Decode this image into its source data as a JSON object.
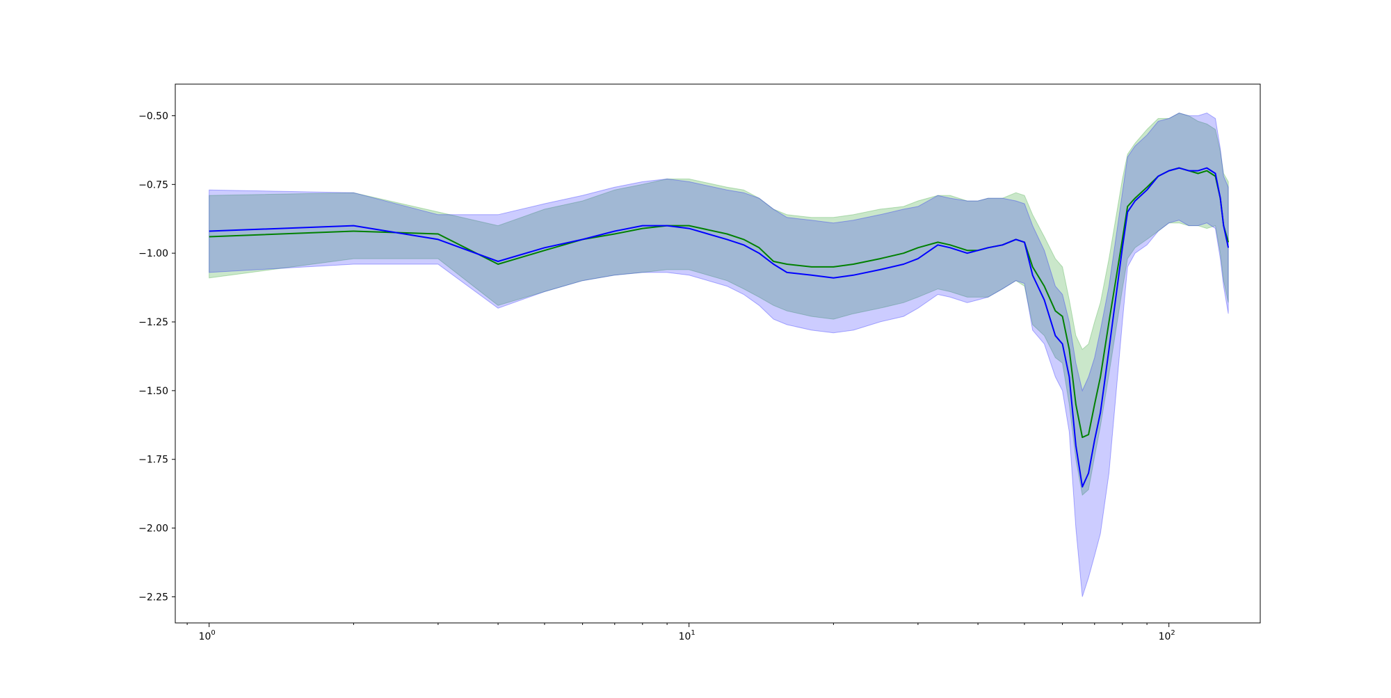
{
  "chart_data": {
    "type": "line",
    "title": "",
    "xlabel": "",
    "ylabel": "",
    "xscale": "log",
    "xlim": [
      0.85,
      155
    ],
    "ylim": [
      -2.345,
      -0.385
    ],
    "grid": false,
    "legend": "none",
    "x_ticks": [
      {
        "value": 1,
        "base": "10",
        "exp": "0"
      },
      {
        "value": 10,
        "base": "10",
        "exp": "1"
      },
      {
        "value": 100,
        "base": "10",
        "exp": "2"
      }
    ],
    "y_ticks": [
      {
        "value": -0.5,
        "label": "−0.50"
      },
      {
        "value": -0.75,
        "label": "−0.75"
      },
      {
        "value": -1.0,
        "label": "−1.00"
      },
      {
        "value": -1.25,
        "label": "−1.25"
      },
      {
        "value": -1.5,
        "label": "−1.50"
      },
      {
        "value": -1.75,
        "label": "−1.75"
      },
      {
        "value": -2.0,
        "label": "−2.00"
      },
      {
        "value": -2.25,
        "label": "−2.25"
      }
    ],
    "series": [
      {
        "color": "#008000",
        "band_color": "#2ca02c",
        "band_opacity": 0.25,
        "points": [
          [
            1,
            -0.94,
            -1.09,
            -0.79
          ],
          [
            2,
            -0.92,
            -1.02,
            -0.78
          ],
          [
            3,
            -0.93,
            -1.02,
            -0.85
          ],
          [
            4,
            -1.04,
            -1.19,
            -0.9
          ],
          [
            5,
            -0.99,
            -1.14,
            -0.84
          ],
          [
            6,
            -0.95,
            -1.1,
            -0.81
          ],
          [
            7,
            -0.93,
            -1.08,
            -0.77
          ],
          [
            8,
            -0.91,
            -1.07,
            -0.75
          ],
          [
            9,
            -0.9,
            -1.06,
            -0.73
          ],
          [
            10,
            -0.9,
            -1.06,
            -0.73
          ],
          [
            12,
            -0.93,
            -1.1,
            -0.76
          ],
          [
            13,
            -0.95,
            -1.13,
            -0.77
          ],
          [
            14,
            -0.98,
            -1.16,
            -0.8
          ],
          [
            15,
            -1.03,
            -1.19,
            -0.84
          ],
          [
            16,
            -1.04,
            -1.21,
            -0.86
          ],
          [
            18,
            -1.05,
            -1.23,
            -0.87
          ],
          [
            20,
            -1.05,
            -1.24,
            -0.87
          ],
          [
            22,
            -1.04,
            -1.22,
            -0.86
          ],
          [
            25,
            -1.02,
            -1.2,
            -0.84
          ],
          [
            28,
            -1.0,
            -1.18,
            -0.83
          ],
          [
            30,
            -0.98,
            -1.16,
            -0.81
          ],
          [
            33,
            -0.96,
            -1.13,
            -0.79
          ],
          [
            35,
            -0.97,
            -1.14,
            -0.79
          ],
          [
            38,
            -0.99,
            -1.16,
            -0.81
          ],
          [
            40,
            -0.99,
            -1.16,
            -0.81
          ],
          [
            42,
            -0.98,
            -1.16,
            -0.8
          ],
          [
            45,
            -0.97,
            -1.13,
            -0.8
          ],
          [
            48,
            -0.95,
            -1.1,
            -0.78
          ],
          [
            50,
            -0.96,
            -1.12,
            -0.79
          ],
          [
            52,
            -1.05,
            -1.26,
            -0.86
          ],
          [
            55,
            -1.12,
            -1.3,
            -0.94
          ],
          [
            58,
            -1.21,
            -1.38,
            -1.02
          ],
          [
            60,
            -1.23,
            -1.4,
            -1.05
          ],
          [
            62,
            -1.35,
            -1.55,
            -1.17
          ],
          [
            64,
            -1.55,
            -1.75,
            -1.3
          ],
          [
            66,
            -1.67,
            -1.88,
            -1.35
          ],
          [
            68,
            -1.66,
            -1.86,
            -1.33
          ],
          [
            70,
            -1.55,
            -1.74,
            -1.25
          ],
          [
            72,
            -1.45,
            -1.63,
            -1.18
          ],
          [
            75,
            -1.25,
            -1.44,
            -1.02
          ],
          [
            80,
            -0.95,
            -1.13,
            -0.73
          ],
          [
            82,
            -0.83,
            -1.02,
            -0.64
          ],
          [
            85,
            -0.8,
            -0.98,
            -0.6
          ],
          [
            90,
            -0.76,
            -0.95,
            -0.55
          ],
          [
            95,
            -0.72,
            -0.92,
            -0.51
          ],
          [
            100,
            -0.7,
            -0.89,
            -0.51
          ],
          [
            105,
            -0.69,
            -0.89,
            -0.49
          ],
          [
            110,
            -0.7,
            -0.9,
            -0.5
          ],
          [
            115,
            -0.71,
            -0.9,
            -0.52
          ],
          [
            120,
            -0.7,
            -0.91,
            -0.53
          ],
          [
            125,
            -0.72,
            -0.9,
            -0.55
          ],
          [
            128,
            -0.8,
            -1.0,
            -0.63
          ],
          [
            130,
            -0.9,
            -1.1,
            -0.71
          ],
          [
            133,
            -0.96,
            -1.18,
            -0.74
          ]
        ]
      },
      {
        "color": "#0000ff",
        "band_color": "#0000ff",
        "band_opacity": 0.2,
        "points": [
          [
            1,
            -0.92,
            -1.07,
            -0.77
          ],
          [
            2,
            -0.9,
            -1.04,
            -0.78
          ],
          [
            3,
            -0.95,
            -1.04,
            -0.86
          ],
          [
            4,
            -1.03,
            -1.2,
            -0.86
          ],
          [
            5,
            -0.98,
            -1.14,
            -0.82
          ],
          [
            6,
            -0.95,
            -1.1,
            -0.79
          ],
          [
            7,
            -0.92,
            -1.08,
            -0.76
          ],
          [
            8,
            -0.9,
            -1.07,
            -0.74
          ],
          [
            9,
            -0.9,
            -1.07,
            -0.73
          ],
          [
            10,
            -0.91,
            -1.08,
            -0.74
          ],
          [
            12,
            -0.95,
            -1.12,
            -0.77
          ],
          [
            13,
            -0.97,
            -1.15,
            -0.78
          ],
          [
            14,
            -1.0,
            -1.19,
            -0.8
          ],
          [
            15,
            -1.04,
            -1.24,
            -0.84
          ],
          [
            16,
            -1.07,
            -1.26,
            -0.87
          ],
          [
            18,
            -1.08,
            -1.28,
            -0.88
          ],
          [
            20,
            -1.09,
            -1.29,
            -0.89
          ],
          [
            22,
            -1.08,
            -1.28,
            -0.88
          ],
          [
            25,
            -1.06,
            -1.25,
            -0.86
          ],
          [
            28,
            -1.04,
            -1.23,
            -0.84
          ],
          [
            30,
            -1.02,
            -1.2,
            -0.83
          ],
          [
            33,
            -0.97,
            -1.15,
            -0.79
          ],
          [
            35,
            -0.98,
            -1.16,
            -0.8
          ],
          [
            38,
            -1.0,
            -1.18,
            -0.81
          ],
          [
            40,
            -0.99,
            -1.17,
            -0.81
          ],
          [
            42,
            -0.98,
            -1.16,
            -0.8
          ],
          [
            45,
            -0.97,
            -1.13,
            -0.8
          ],
          [
            48,
            -0.95,
            -1.1,
            -0.81
          ],
          [
            50,
            -0.96,
            -1.11,
            -0.82
          ],
          [
            52,
            -1.08,
            -1.28,
            -0.9
          ],
          [
            55,
            -1.17,
            -1.33,
            -0.99
          ],
          [
            58,
            -1.3,
            -1.45,
            -1.12
          ],
          [
            60,
            -1.33,
            -1.5,
            -1.15
          ],
          [
            62,
            -1.45,
            -1.65,
            -1.25
          ],
          [
            64,
            -1.7,
            -2.0,
            -1.4
          ],
          [
            66,
            -1.85,
            -2.25,
            -1.5
          ],
          [
            68,
            -1.8,
            -2.18,
            -1.45
          ],
          [
            70,
            -1.68,
            -2.1,
            -1.38
          ],
          [
            72,
            -1.58,
            -2.02,
            -1.28
          ],
          [
            75,
            -1.35,
            -1.8,
            -1.12
          ],
          [
            80,
            -0.98,
            -1.25,
            -0.78
          ],
          [
            82,
            -0.85,
            -1.05,
            -0.65
          ],
          [
            85,
            -0.81,
            -1.0,
            -0.61
          ],
          [
            90,
            -0.77,
            -0.97,
            -0.57
          ],
          [
            95,
            -0.72,
            -0.92,
            -0.52
          ],
          [
            100,
            -0.7,
            -0.89,
            -0.51
          ],
          [
            105,
            -0.69,
            -0.88,
            -0.49
          ],
          [
            110,
            -0.7,
            -0.9,
            -0.5
          ],
          [
            115,
            -0.7,
            -0.9,
            -0.5
          ],
          [
            120,
            -0.69,
            -0.89,
            -0.49
          ],
          [
            125,
            -0.71,
            -0.91,
            -0.51
          ],
          [
            128,
            -0.8,
            -1.02,
            -0.62
          ],
          [
            130,
            -0.9,
            -1.12,
            -0.72
          ],
          [
            133,
            -0.98,
            -1.22,
            -0.76
          ]
        ]
      }
    ]
  }
}
